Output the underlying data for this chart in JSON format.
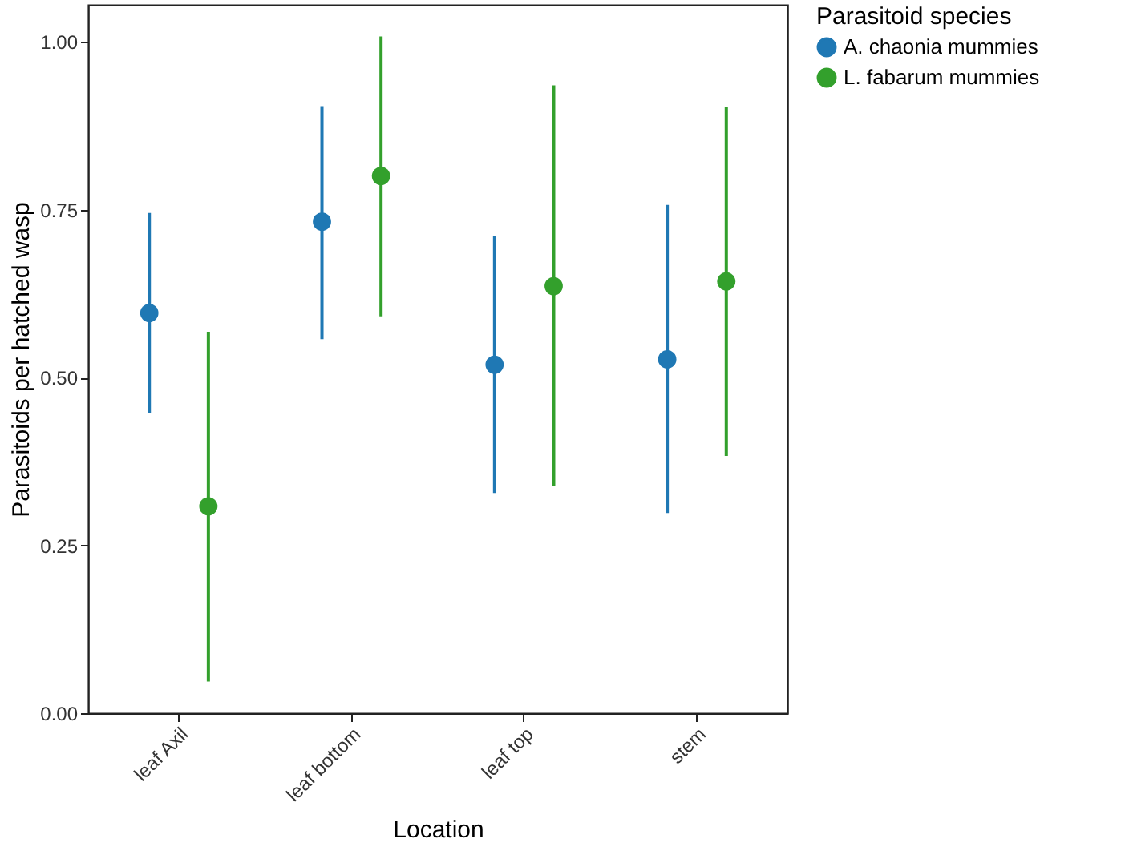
{
  "chart_data": {
    "type": "scatter",
    "xlabel": "Location",
    "ylabel": "Parasitoids per hatched wasp",
    "legend_title": "Parasitoid species",
    "categories": [
      "leaf Axil",
      "leaf bottom",
      "leaf top",
      "stem"
    ],
    "series": [
      {
        "name": "A. chaonia mummies",
        "color": "#1f78b4",
        "values": [
          0.596,
          0.732,
          0.519,
          0.527
        ],
        "errors": [
          [
            0.447,
            0.745
          ],
          [
            0.557,
            0.904
          ],
          [
            0.328,
            0.711
          ],
          [
            0.298,
            0.757
          ]
        ]
      },
      {
        "name": "L. fabarum mummies",
        "color": "#33a02c",
        "values": [
          0.308,
          0.8,
          0.636,
          0.643
        ],
        "errors": [
          [
            0.047,
            0.568
          ],
          [
            0.591,
            1.008
          ],
          [
            0.339,
            0.935
          ],
          [
            0.383,
            0.903
          ]
        ]
      }
    ],
    "ylim": [
      0,
      1.055
    ],
    "yticks": [
      {
        "value": 0,
        "label": "0.00"
      },
      {
        "value": 0.25,
        "label": "0.25"
      },
      {
        "value": 0.5,
        "label": "0.50"
      },
      {
        "value": 0.75,
        "label": "0.75"
      },
      {
        "value": 1,
        "label": "1.00"
      }
    ],
    "grid": false,
    "legend": "right",
    "marker": "circle"
  }
}
